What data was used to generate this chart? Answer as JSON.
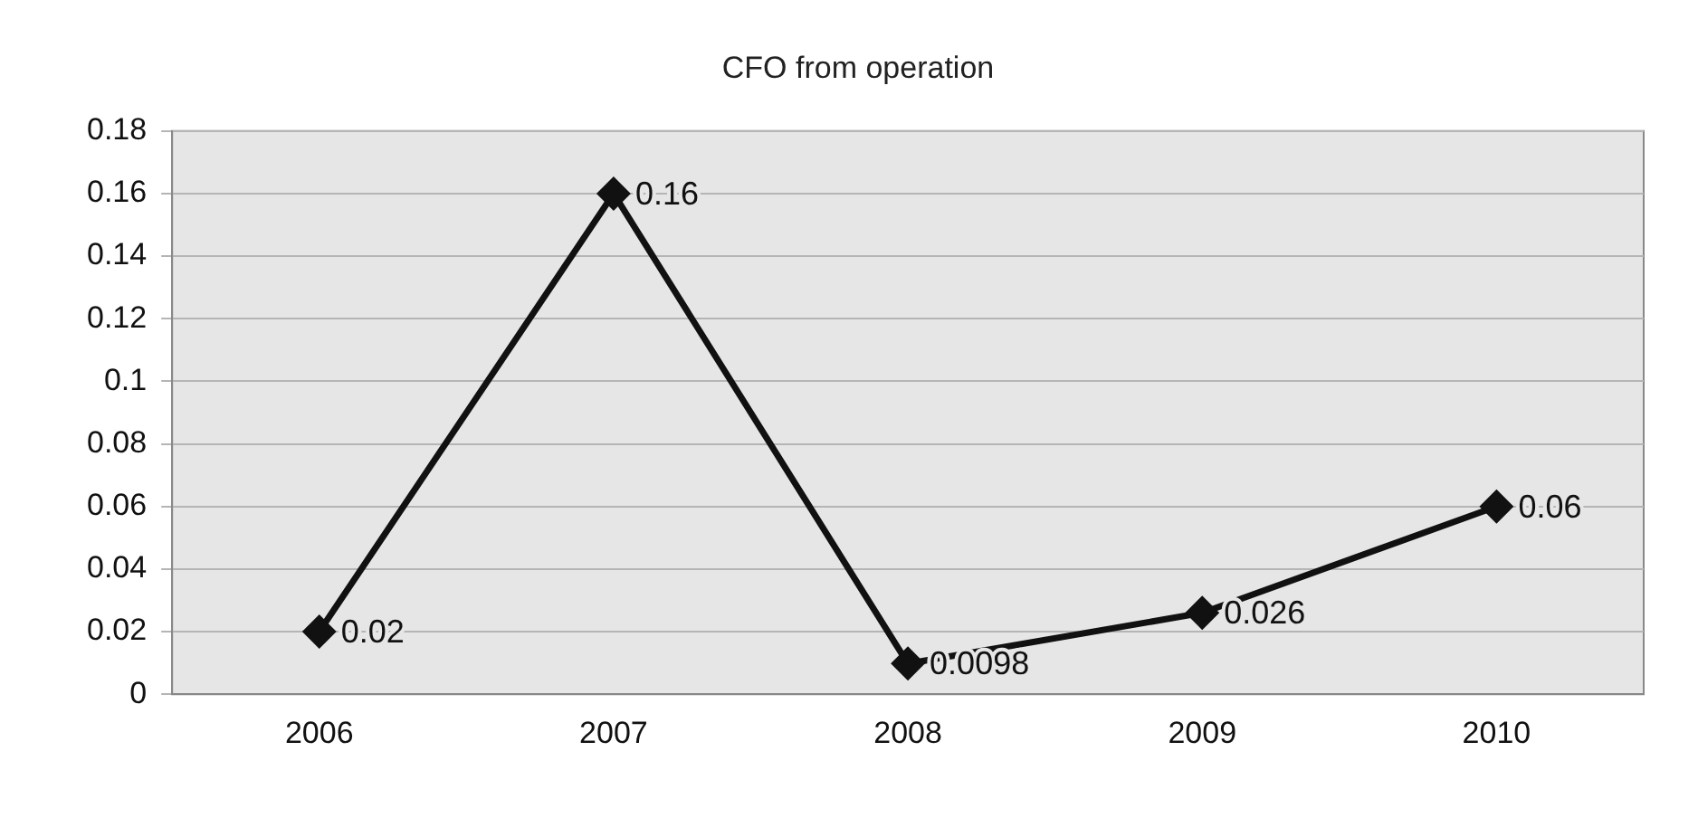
{
  "chart_data": {
    "type": "line",
    "title": "CFO from operation",
    "categories": [
      "2006",
      "2007",
      "2008",
      "2009",
      "2010"
    ],
    "series": [
      {
        "color": "#111111",
        "values": [
          0.02,
          0.16,
          0.0098,
          0.026,
          0.06
        ]
      }
    ],
    "ylim": [
      0,
      0.18
    ],
    "yticks": [
      0,
      0.02,
      0.04,
      0.06,
      0.08,
      0.1,
      0.12,
      0.14,
      0.16,
      0.18
    ],
    "grid": "y",
    "legend": false,
    "marker": "diamond",
    "line_style": "solid",
    "data_labels": true
  }
}
